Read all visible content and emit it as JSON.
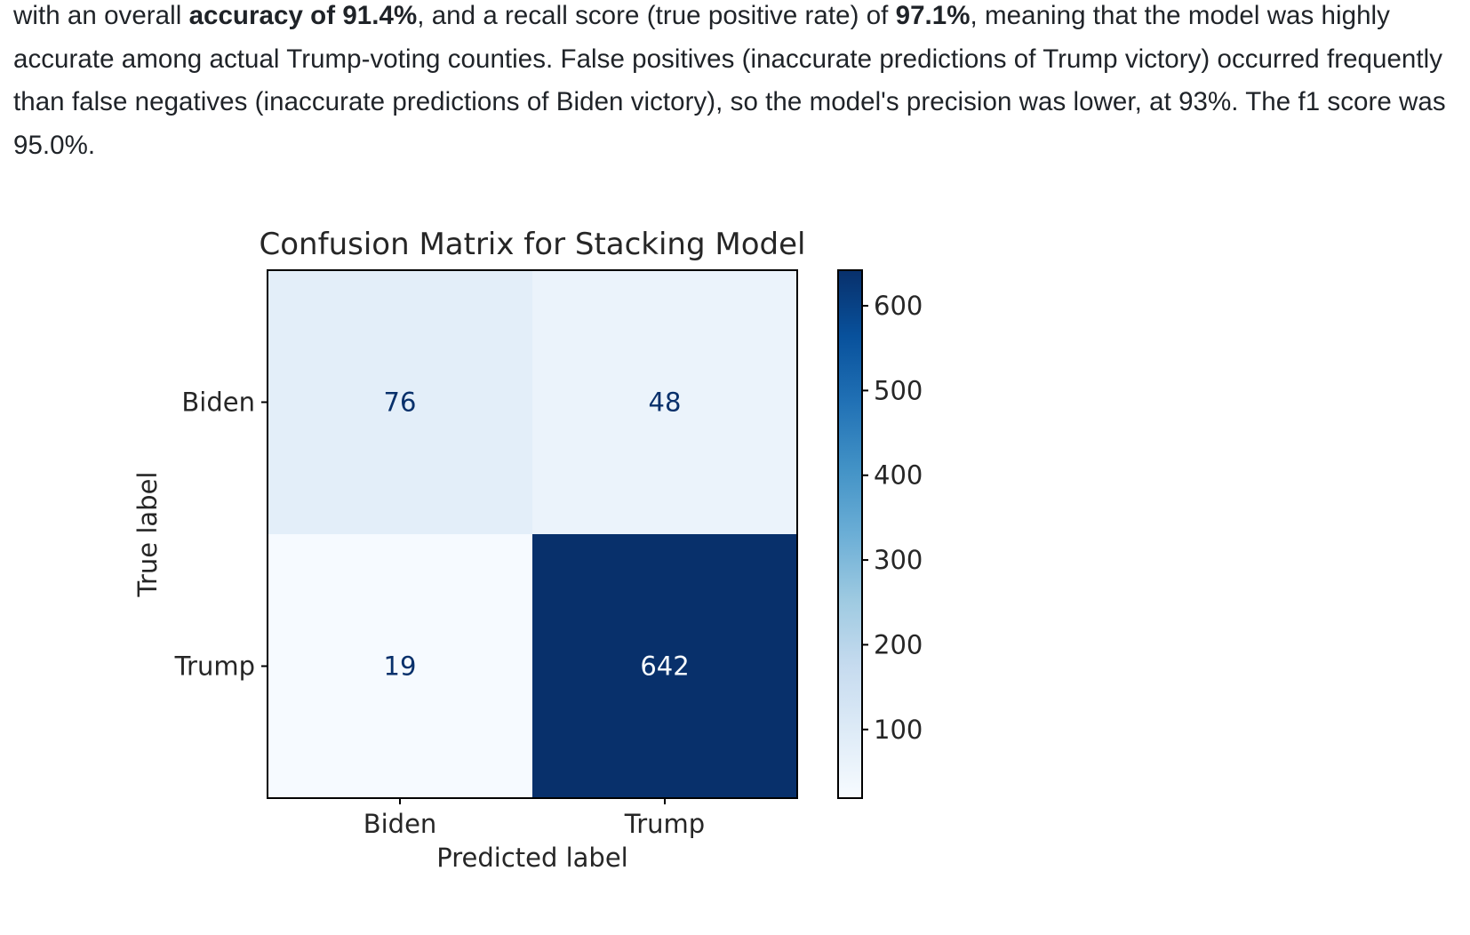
{
  "document": {
    "paragraph_parts": [
      {
        "text": "with an overall ",
        "bold": false
      },
      {
        "text": "accuracy of 91.4%",
        "bold": true
      },
      {
        "text": ", and a recall score (true positive rate) of ",
        "bold": false
      },
      {
        "text": "97.1%",
        "bold": true
      },
      {
        "text": ", meaning that the model was highly accurate among actual Trump-voting counties. False positives (inaccurate predictions of Trump victory) occurred frequently than false negatives (inaccurate predictions of Biden victory), so the model's precision was lower, at 93%. The f1 score was 95.0%.",
        "bold": false
      }
    ]
  },
  "chart_data": {
    "type": "heatmap",
    "title": "Confusion Matrix for Stacking Model",
    "xlabel": "Predicted label",
    "ylabel": "True label",
    "x_categories": [
      "Biden",
      "Trump"
    ],
    "y_categories": [
      "Biden",
      "Trump"
    ],
    "matrix": [
      [
        76,
        48
      ],
      [
        19,
        642
      ]
    ],
    "colormap": "Blues",
    "colorbar": {
      "ticks": [
        100,
        200,
        300,
        400,
        500,
        600
      ],
      "range": [
        19,
        642
      ]
    },
    "colors": {
      "cell_76": "#e3eef9",
      "cell_48": "#ebf3fb",
      "cell_19": "#f6faff",
      "cell_642": "#08306b",
      "text_dark": "#08306b",
      "text_light": "#f7fbff"
    }
  }
}
